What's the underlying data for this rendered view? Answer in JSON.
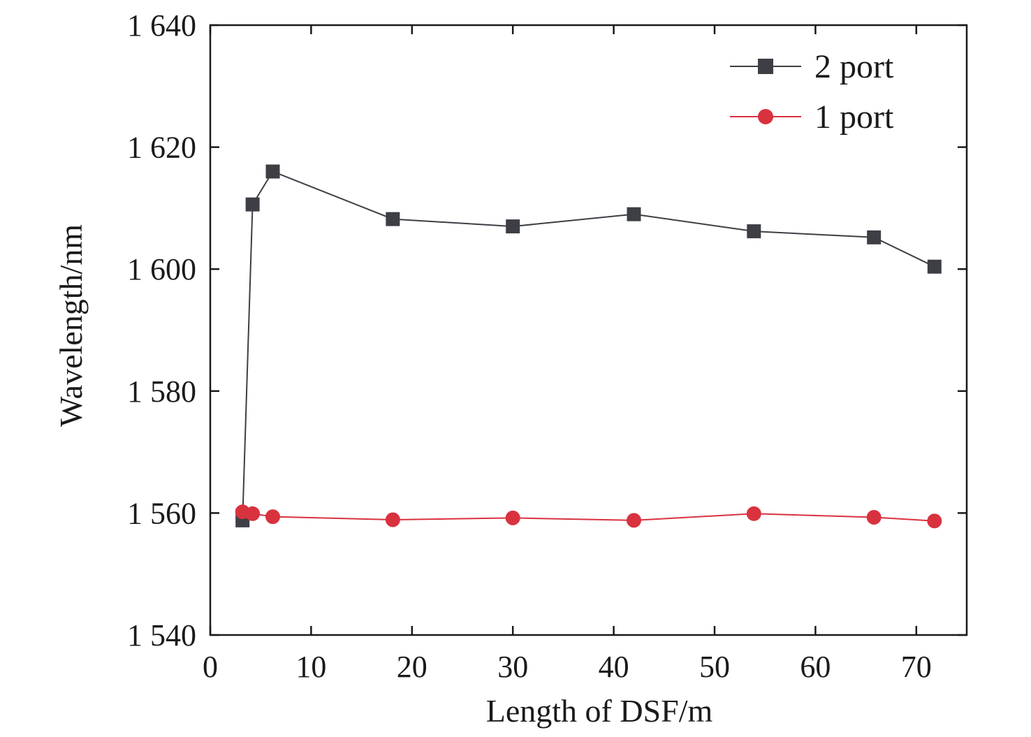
{
  "chart_data": {
    "type": "line",
    "title": "",
    "xlabel": "Length of DSF/m",
    "ylabel": "Wavelength/nm",
    "xlim": [
      0,
      75
    ],
    "ylim": [
      1540,
      1640
    ],
    "x_ticks": [
      0,
      10,
      20,
      30,
      40,
      50,
      60,
      70
    ],
    "y_ticks": [
      1540,
      1560,
      1580,
      1600,
      1620,
      1640
    ],
    "x_tick_labels": [
      "0",
      "10",
      "20",
      "30",
      "40",
      "50",
      "60",
      "70"
    ],
    "y_tick_labels": [
      "1 540",
      "1 560",
      "1 580",
      "1 600",
      "1 620",
      "1 640"
    ],
    "grid": false,
    "legend_position": "top-right",
    "series": [
      {
        "name": "2 port",
        "marker": "square",
        "color": "#3d3f45",
        "x": [
          3.2,
          4.2,
          6.2,
          18.1,
          30.0,
          42.0,
          53.9,
          65.8,
          71.8
        ],
        "y": [
          1558.8,
          1610.6,
          1616.0,
          1608.2,
          1607.0,
          1609.0,
          1606.2,
          1605.2,
          1600.4
        ]
      },
      {
        "name": "1 port",
        "marker": "circle",
        "color": "#d9323f",
        "x": [
          3.2,
          4.2,
          6.2,
          18.1,
          30.0,
          42.0,
          53.9,
          65.8,
          71.8
        ],
        "y": [
          1560.2,
          1559.9,
          1559.4,
          1558.9,
          1559.2,
          1558.8,
          1559.9,
          1559.3,
          1558.7
        ]
      }
    ]
  }
}
